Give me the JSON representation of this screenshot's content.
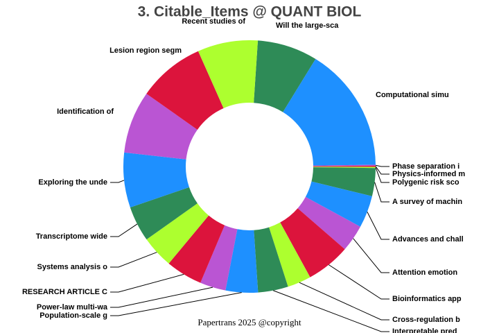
{
  "chart_data": {
    "type": "donut",
    "title": "3. Citable_Items @ QUANT BIOL",
    "footer": "Papertrans 2025 @copyright",
    "categories": [
      "Will the large-sca",
      "Computational simu",
      "Phase separation i",
      "Physics-informed m",
      "Polygenic risk sco",
      "A survey of machin",
      "Advances and chall",
      "Attention emotion",
      "Bioinformatics app",
      "Cross-regulation b",
      "Interpretable pred",
      "Population-scale g",
      "Power-law multi-wa",
      "RESEARCH ARTICLE C",
      "Systems analysis o",
      "Transcriptome wide",
      "Exploring the unde",
      "Identification of",
      "Lesion region segm",
      "Recent studies of"
    ],
    "values": [
      28,
      58,
      0.5,
      0.5,
      0.5,
      13,
      15,
      12.5,
      20.5,
      11,
      14,
      15,
      12,
      17,
      15,
      16.5,
      25.5,
      29,
      31,
      28
    ],
    "colors": [
      "#2e8b57",
      "#1e90ff",
      "#ba55d3",
      "#dc143c",
      "#adff2f",
      "#2e8b57",
      "#1e90ff",
      "#ba55d3",
      "#dc143c",
      "#adff2f",
      "#2e8b57",
      "#1e90ff",
      "#ba55d3",
      "#dc143c",
      "#adff2f",
      "#2e8b57",
      "#1e90ff",
      "#ba55d3",
      "#dc143c",
      "#adff2f"
    ]
  }
}
